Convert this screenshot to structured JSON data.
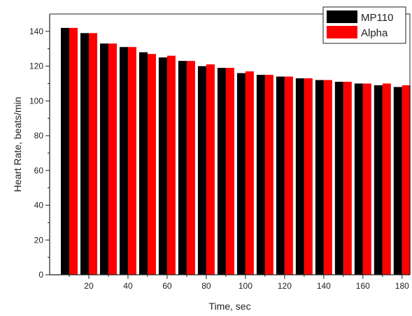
{
  "chart_data": {
    "type": "bar",
    "xlabel": "Time, sec",
    "ylabel": "Heart Rate, beats/min",
    "xlim": [
      0,
      184
    ],
    "ylim": [
      0,
      150
    ],
    "x_ticks": [
      20,
      40,
      60,
      80,
      100,
      120,
      140,
      160,
      180
    ],
    "y_ticks": [
      0,
      20,
      40,
      60,
      80,
      100,
      120,
      140
    ],
    "x_minor_step": 10,
    "y_minor_step": 10,
    "grid": false,
    "legend_position": "top-right",
    "x": [
      10,
      20,
      30,
      40,
      50,
      60,
      70,
      80,
      90,
      100,
      110,
      120,
      130,
      140,
      150,
      160,
      170,
      180
    ],
    "series": [
      {
        "name": "MP110",
        "color": "#000000",
        "values": [
          142,
          139,
          133,
          131,
          128,
          125,
          123,
          120,
          119,
          116,
          115,
          114,
          113,
          112,
          111,
          110,
          109,
          108
        ]
      },
      {
        "name": "Alpha",
        "color": "#ff0000",
        "values": [
          142,
          139,
          133,
          131,
          127,
          126,
          123,
          121,
          119,
          117,
          115,
          114,
          113,
          112,
          111,
          110,
          110,
          109
        ]
      }
    ]
  }
}
